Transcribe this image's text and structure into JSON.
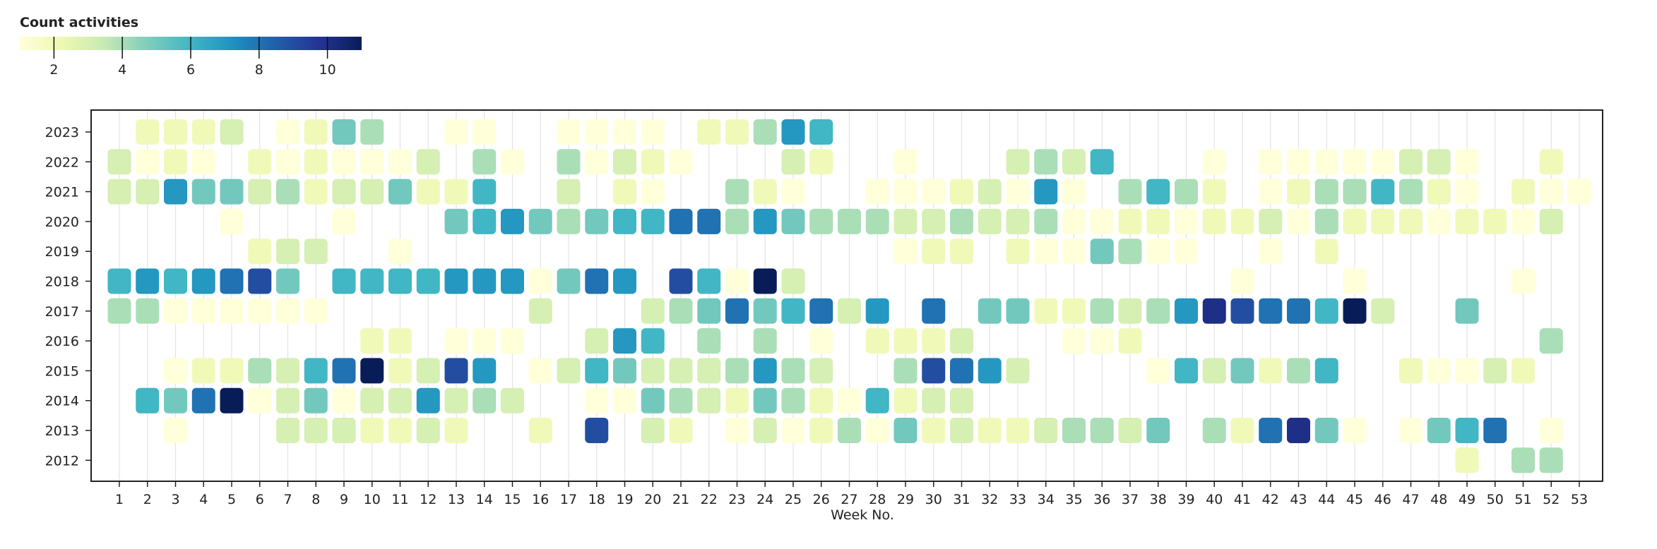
{
  "chart_data": {
    "type": "heatmap",
    "title": "",
    "xlabel": "Week No.",
    "ylabel": "",
    "x": [
      1,
      2,
      3,
      4,
      5,
      6,
      7,
      8,
      9,
      10,
      11,
      12,
      13,
      14,
      15,
      16,
      17,
      18,
      19,
      20,
      21,
      22,
      23,
      24,
      25,
      26,
      27,
      28,
      29,
      30,
      31,
      32,
      33,
      34,
      35,
      36,
      37,
      38,
      39,
      40,
      41,
      42,
      43,
      44,
      45,
      46,
      47,
      48,
      49,
      50,
      51,
      52,
      53
    ],
    "y": [
      "2023",
      "2022",
      "2021",
      "2020",
      "2019",
      "2018",
      "2017",
      "2016",
      "2015",
      "2014",
      "2013",
      "2012"
    ],
    "values": {
      "2023": [
        null,
        2,
        2,
        2,
        3,
        null,
        1,
        2,
        5,
        4,
        null,
        null,
        1,
        1,
        null,
        null,
        1,
        1,
        1,
        1,
        null,
        2,
        2,
        4,
        7,
        6,
        null,
        null,
        null,
        null,
        null,
        null,
        null,
        null,
        null,
        null,
        null,
        null,
        null,
        null,
        null,
        null,
        null,
        null,
        null,
        null,
        null,
        null,
        null,
        null,
        null,
        null,
        null
      ],
      "2022": [
        3,
        1,
        2,
        1,
        null,
        2,
        1,
        2,
        1,
        1,
        1,
        3,
        null,
        4,
        1,
        null,
        4,
        1,
        3,
        2,
        1,
        null,
        null,
        null,
        3,
        2,
        null,
        null,
        1,
        null,
        null,
        null,
        3,
        4,
        3,
        6,
        null,
        null,
        null,
        1,
        null,
        1,
        1,
        1,
        1,
        1,
        3,
        3,
        1,
        null,
        null,
        2,
        null
      ],
      "2021": [
        3,
        3,
        7,
        5,
        5,
        3,
        4,
        2,
        3,
        3,
        5,
        2,
        2,
        6,
        null,
        null,
        3,
        null,
        2,
        1,
        null,
        null,
        4,
        2,
        1,
        null,
        null,
        1,
        1,
        1,
        2,
        3,
        1,
        7,
        1,
        null,
        4,
        6,
        4,
        2,
        null,
        1,
        2,
        4,
        4,
        6,
        4,
        2,
        1,
        null,
        2,
        1,
        1
      ],
      "2020": [
        null,
        null,
        null,
        null,
        1,
        null,
        null,
        null,
        1,
        null,
        null,
        null,
        5,
        6,
        7,
        5,
        4,
        5,
        6,
        6,
        8,
        8,
        4,
        7,
        5,
        4,
        4,
        4,
        3,
        3,
        4,
        3,
        3,
        4,
        1,
        1,
        2,
        2,
        1,
        2,
        2,
        3,
        1,
        4,
        2,
        2,
        2,
        1,
        2,
        2,
        1,
        3,
        null
      ],
      "2019": [
        null,
        null,
        null,
        null,
        null,
        2,
        3,
        3,
        null,
        null,
        1,
        null,
        null,
        null,
        null,
        null,
        null,
        null,
        null,
        null,
        null,
        null,
        null,
        null,
        null,
        null,
        null,
        null,
        1,
        2,
        2,
        null,
        2,
        1,
        1,
        5,
        4,
        1,
        1,
        null,
        null,
        1,
        null,
        2,
        null,
        null,
        null,
        null,
        null,
        null,
        null,
        null,
        null
      ],
      "2018": [
        6,
        7,
        6,
        7,
        8,
        9,
        5,
        null,
        6,
        6,
        6,
        6,
        7,
        7,
        7,
        1,
        5,
        8,
        7,
        null,
        9,
        6,
        1,
        11,
        3,
        null,
        null,
        null,
        null,
        null,
        null,
        null,
        null,
        null,
        null,
        null,
        null,
        null,
        null,
        null,
        1,
        null,
        null,
        null,
        1,
        null,
        null,
        null,
        null,
        null,
        1,
        null,
        null
      ],
      "2017": [
        4,
        4,
        1,
        1,
        1,
        1,
        1,
        1,
        null,
        null,
        null,
        null,
        null,
        null,
        null,
        3,
        null,
        null,
        null,
        3,
        4,
        5,
        8,
        5,
        6,
        8,
        3,
        7,
        null,
        8,
        null,
        5,
        5,
        2,
        2,
        4,
        3,
        4,
        7,
        10,
        9,
        8,
        8,
        6,
        11,
        3,
        null,
        null,
        5,
        null,
        null,
        null,
        null
      ],
      "2016": [
        null,
        null,
        null,
        null,
        null,
        null,
        null,
        null,
        null,
        2,
        2,
        null,
        1,
        1,
        1,
        null,
        null,
        3,
        7,
        6,
        null,
        4,
        null,
        4,
        null,
        1,
        null,
        2,
        2,
        2,
        3,
        null,
        null,
        null,
        1,
        1,
        2,
        null,
        null,
        null,
        null,
        null,
        null,
        null,
        null,
        null,
        null,
        null,
        null,
        null,
        null,
        4,
        null
      ],
      "2015": [
        null,
        null,
        1,
        2,
        2,
        4,
        3,
        6,
        8,
        11,
        2,
        3,
        9,
        7,
        null,
        1,
        3,
        6,
        5,
        3,
        3,
        3,
        4,
        7,
        4,
        3,
        null,
        null,
        4,
        9,
        8,
        7,
        3,
        null,
        null,
        null,
        null,
        1,
        6,
        3,
        5,
        2,
        4,
        6,
        null,
        null,
        2,
        1,
        1,
        3,
        2,
        null,
        null
      ],
      "2014": [
        null,
        6,
        5,
        8,
        11,
        1,
        3,
        5,
        1,
        3,
        3,
        7,
        3,
        4,
        3,
        null,
        null,
        1,
        1,
        5,
        4,
        3,
        2,
        5,
        4,
        2,
        1,
        6,
        2,
        3,
        3,
        null,
        null,
        null,
        null,
        null,
        null,
        null,
        null,
        null,
        null,
        null,
        null,
        null,
        null,
        null,
        null,
        null,
        null,
        null,
        null,
        null,
        null
      ],
      "2013": [
        null,
        null,
        1,
        null,
        null,
        null,
        3,
        3,
        3,
        2,
        2,
        3,
        2,
        null,
        null,
        2,
        null,
        9,
        null,
        3,
        2,
        null,
        1,
        3,
        1,
        2,
        4,
        1,
        5,
        2,
        3,
        2,
        2,
        3,
        4,
        4,
        3,
        5,
        null,
        4,
        2,
        8,
        10,
        5,
        1,
        null,
        1,
        5,
        6,
        8,
        null,
        1,
        null
      ],
      "2012": [
        null,
        null,
        null,
        null,
        null,
        null,
        null,
        null,
        null,
        null,
        null,
        null,
        null,
        null,
        null,
        null,
        null,
        null,
        null,
        null,
        null,
        null,
        null,
        null,
        null,
        null,
        null,
        null,
        null,
        null,
        null,
        null,
        null,
        null,
        null,
        null,
        null,
        null,
        null,
        null,
        null,
        null,
        null,
        null,
        null,
        null,
        null,
        null,
        2,
        null,
        4,
        4,
        null
      ]
    },
    "legend": {
      "title": "Count activities",
      "ticks": [
        2,
        4,
        6,
        8,
        10
      ],
      "range": [
        1,
        11
      ],
      "placement": "top-left"
    },
    "colorscale": [
      "#ffffd9",
      "#edf8b1",
      "#c7e9b4",
      "#7fcdbb",
      "#41b6c4",
      "#1d91c0",
      "#225ea8",
      "#253494",
      "#081d58"
    ],
    "grid": true
  }
}
